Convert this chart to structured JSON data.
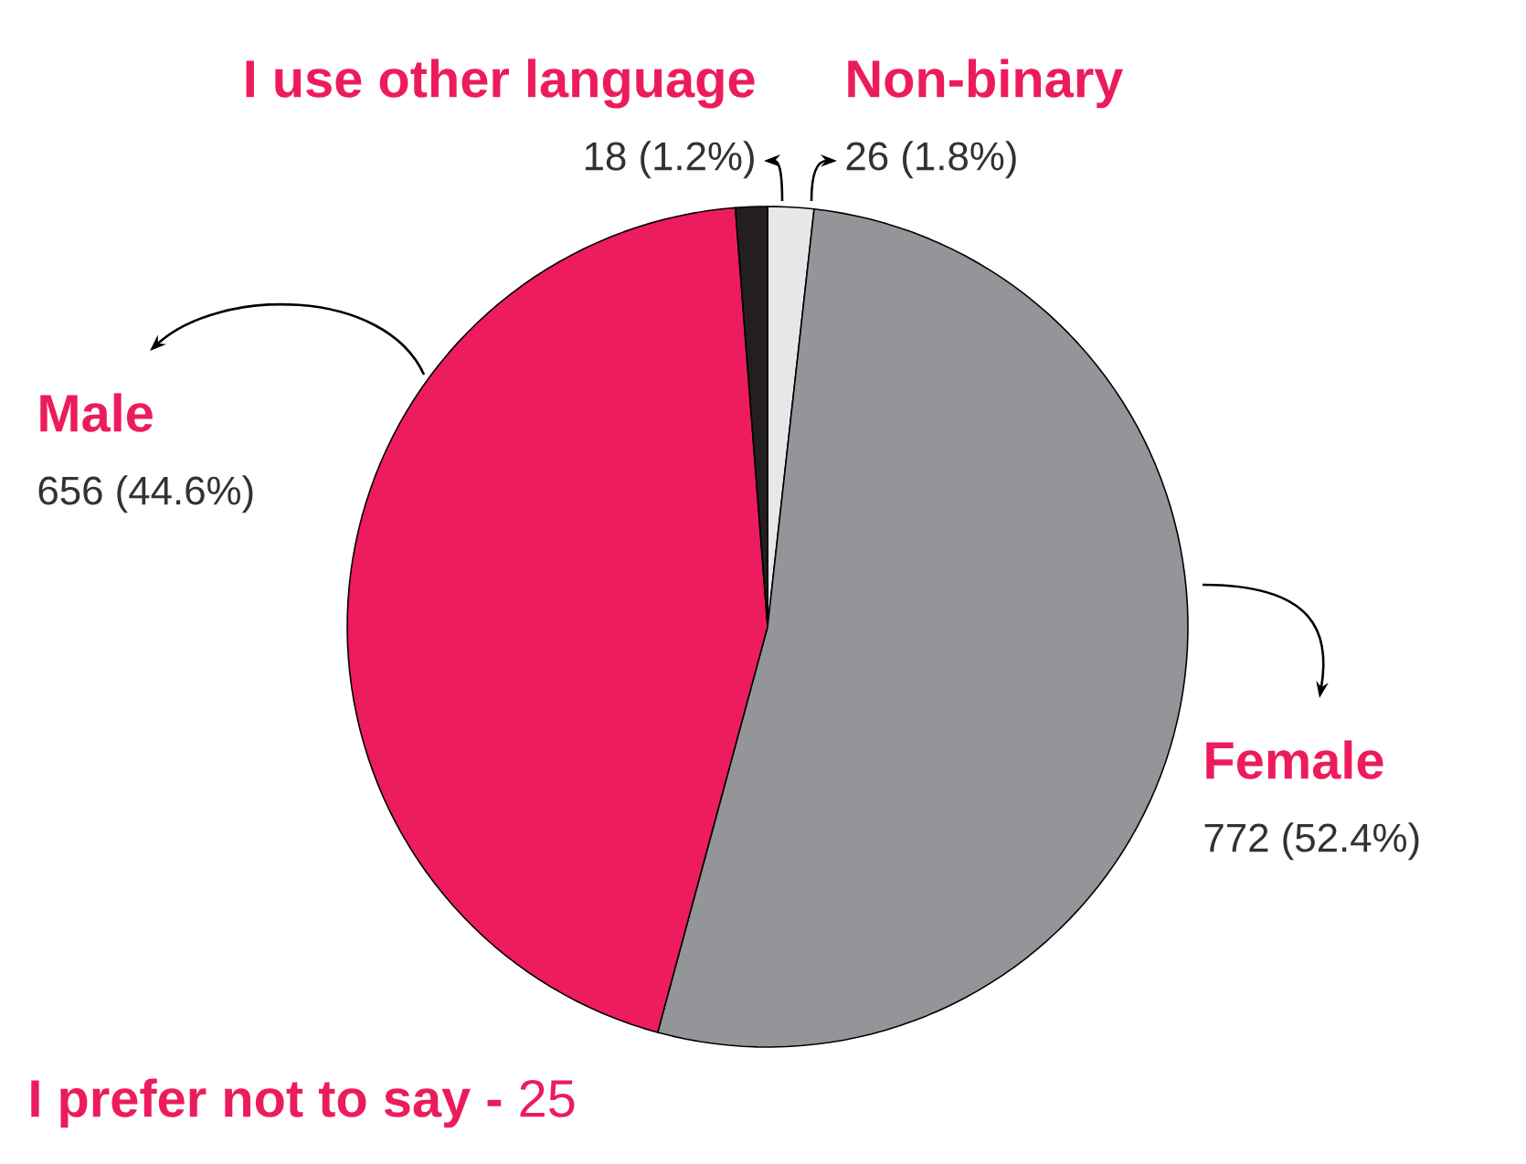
{
  "chart_data": {
    "type": "pie",
    "categories": [
      "Non-binary",
      "Female",
      "Male",
      "I use other language"
    ],
    "values": [
      26,
      772,
      656,
      18
    ],
    "colors": [
      "#e6e7e8",
      "#939598",
      "#ed1c5f",
      "#231f20"
    ],
    "value_labels": [
      "26 (1.8%)",
      "772 (52.4%)",
      "656 (44.6%)",
      "18 (1.2%)"
    ],
    "annotations": [
      "**I prefer not to say -** 25"
    ]
  }
}
